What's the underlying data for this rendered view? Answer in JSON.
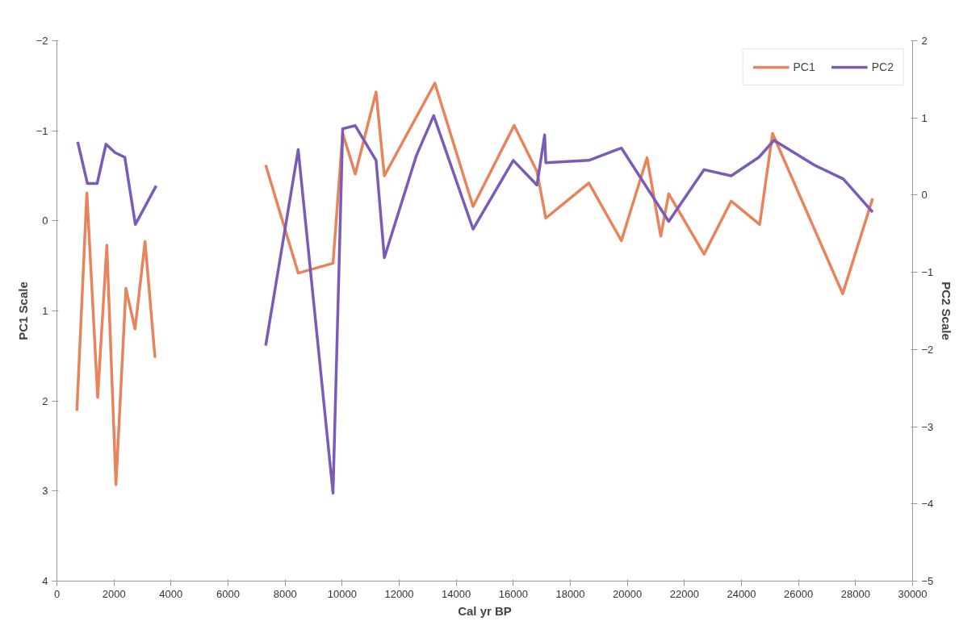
{
  "chart_data": {
    "type": "line",
    "xlabel": "Cal yr BP",
    "ylabel": "PC1 Scale",
    "y2label": "PC2 Scale",
    "xlim": [
      0,
      30000
    ],
    "xticks": [
      0,
      2000,
      4000,
      6000,
      8000,
      10000,
      12000,
      14000,
      16000,
      18000,
      20000,
      22000,
      24000,
      26000,
      28000,
      30000
    ],
    "ylim": [
      4,
      -2
    ],
    "yticks": [
      -2,
      -1,
      0,
      1,
      2,
      3,
      4
    ],
    "y2lim": [
      -5,
      2
    ],
    "y2ticks": [
      -5,
      -4,
      -3,
      -2,
      -1,
      0,
      1,
      2
    ],
    "grid": false,
    "legend": "top right",
    "marker": "none",
    "line_style": "solid",
    "series": [
      {
        "name": "PC1",
        "color": "#e8845c",
        "x": [
          700,
          1050,
          1430,
          1750,
          2070,
          2420,
          2740,
          3090,
          3440,
          5000,
          7320,
          8460,
          9680,
          10020,
          10460,
          11190,
          11480,
          13250,
          14590,
          16030,
          16830,
          17140,
          18650,
          19790,
          20690,
          21170,
          21450,
          22690,
          23640,
          24640,
          25090,
          27550,
          28600
        ],
        "values": [
          2.11,
          -0.31,
          1.96,
          0.27,
          2.93,
          0.75,
          1.2,
          0.23,
          1.52,
          null,
          -0.62,
          0.58,
          0.47,
          -0.97,
          -0.52,
          -1.43,
          -0.5,
          -1.53,
          -0.16,
          -1.06,
          -0.55,
          -0.03,
          -0.42,
          0.22,
          -0.7,
          0.17,
          -0.3,
          0.37,
          -0.22,
          0.04,
          -0.97,
          0.81,
          -0.25
        ]
      },
      {
        "name": "PC2",
        "color": "#7a5cb8",
        "axis": "y2",
        "x": [
          730,
          1070,
          1410,
          1720,
          2040,
          2380,
          2750,
          3480,
          5000,
          7320,
          8460,
          9680,
          10020,
          10460,
          11190,
          11480,
          12600,
          13210,
          14590,
          16000,
          16830,
          17100,
          17140,
          18650,
          19790,
          21450,
          22690,
          23640,
          24610,
          25140,
          26550,
          27570,
          28600
        ],
        "values": [
          0.69,
          0.15,
          0.15,
          0.66,
          0.55,
          0.49,
          -0.38,
          0.12,
          null,
          -1.95,
          0.59,
          -3.86,
          0.86,
          0.9,
          0.45,
          -0.81,
          0.51,
          1.03,
          -0.44,
          0.45,
          0.13,
          0.78,
          0.42,
          0.45,
          0.61,
          -0.34,
          0.33,
          0.25,
          0.49,
          0.71,
          0.39,
          0.21,
          -0.22
        ]
      }
    ]
  }
}
